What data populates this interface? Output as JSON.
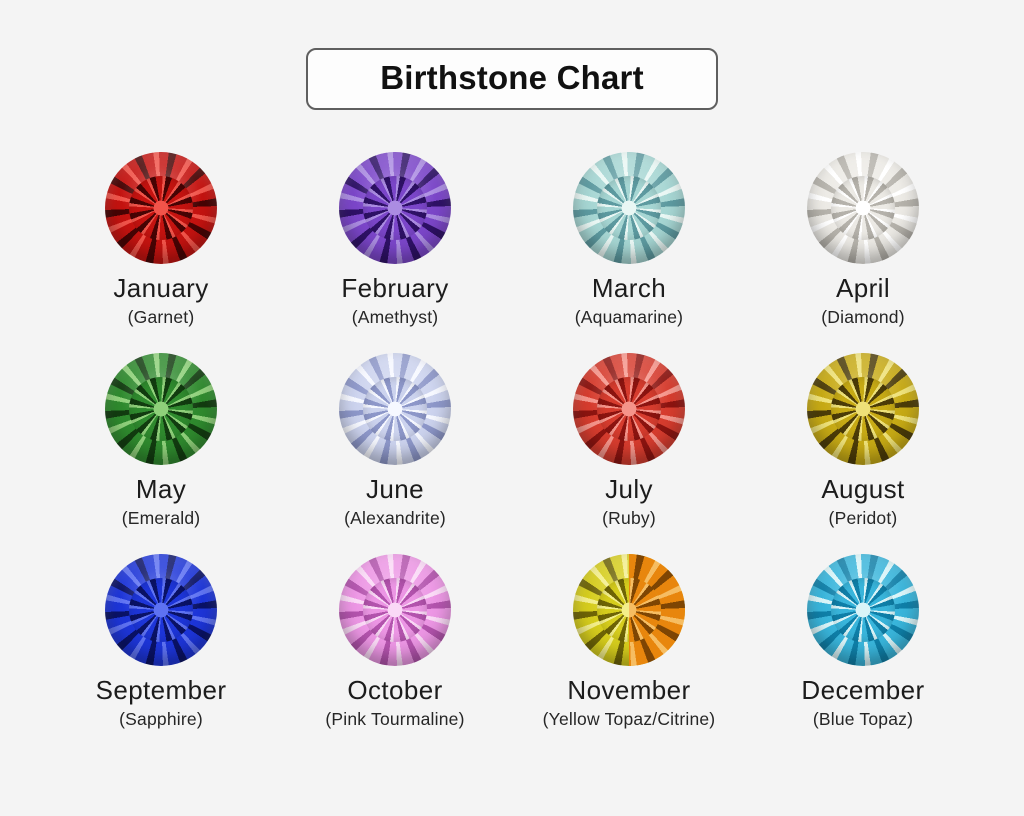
{
  "title": "Birthstone Chart",
  "colors": {
    "background": "#f4f4f4",
    "text": "#1b1b1b",
    "title_border": "#5f5f5f",
    "title_background": "#fdfdfd"
  },
  "months": [
    {
      "month": "January",
      "stone_label": "(Garnet)",
      "gem": {
        "base": "#c41310",
        "dark": "#470404",
        "light": "#f1544a"
      }
    },
    {
      "month": "February",
      "stone_label": "(Amethyst)",
      "gem": {
        "base": "#7b46c9",
        "dark": "#2e1166",
        "light": "#ab8ce2"
      }
    },
    {
      "month": "March",
      "stone_label": "(Aquamarine)",
      "gem": {
        "base": "#a6d6d3",
        "dark": "#5d9aa0",
        "light": "#e9f7f4"
      }
    },
    {
      "month": "April",
      "stone_label": "(Diamond)",
      "gem": {
        "base": "#eceae5",
        "dark": "#b5b2ab",
        "light": "#ffffff"
      }
    },
    {
      "month": "May",
      "stone_label": "(Emerald)",
      "gem": {
        "base": "#2f8a2e",
        "dark": "#123c10",
        "light": "#8fd07a"
      }
    },
    {
      "month": "June",
      "stone_label": "(Alexandrite)",
      "gem": {
        "base": "#ccd3ee",
        "dark": "#8d97c9",
        "light": "#f6f8ff"
      }
    },
    {
      "month": "July",
      "stone_label": "(Ruby)",
      "gem": {
        "base": "#d63c2e",
        "dark": "#8c1410",
        "light": "#f5948a"
      }
    },
    {
      "month": "August",
      "stone_label": "(Peridot)",
      "gem": {
        "base": "#c7aa15",
        "dark": "#4c3c08",
        "light": "#eee178"
      }
    },
    {
      "month": "September",
      "stone_label": "(Sapphire)",
      "gem": {
        "base": "#1d35d8",
        "dark": "#0a1266",
        "light": "#5e72f2"
      }
    },
    {
      "month": "October",
      "stone_label": "(Pink Tourmaline)",
      "gem": {
        "base": "#ec96e4",
        "dark": "#b353ad",
        "light": "#fad9f6"
      }
    },
    {
      "month": "November",
      "stone_label": "(Yellow Topaz/Citrine)",
      "gem": {
        "base": "#d6cd1d",
        "dark": "#6e6406",
        "light": "#f3ee8a",
        "base2": "#e8860d",
        "dark2": "#7e4503",
        "light2": "#f6bd62"
      }
    },
    {
      "month": "December",
      "stone_label": "(Blue Topaz)",
      "gem": {
        "base": "#39b5db",
        "dark": "#0f7fa8",
        "light": "#d9f4f8"
      }
    }
  ]
}
